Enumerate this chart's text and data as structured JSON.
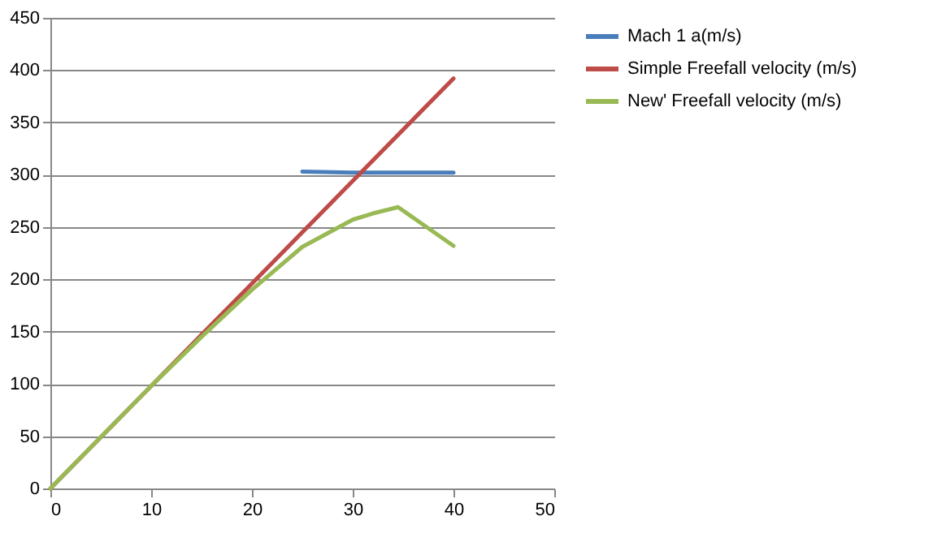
{
  "chart_data": {
    "type": "line",
    "xlim": [
      0,
      50
    ],
    "xticks": [
      0,
      10,
      20,
      30,
      40,
      50
    ],
    "ylim": [
      0,
      450
    ],
    "yticks": [
      0,
      50,
      100,
      150,
      200,
      250,
      300,
      350,
      400,
      450
    ],
    "grid": "y",
    "legend": "right",
    "marker": "none",
    "line_style": "solid",
    "series": [
      {
        "name": "Mach 1   a(m/s)",
        "color": "#4a7ebb",
        "x": [
          25,
          30,
          35,
          40
        ],
        "values": [
          303,
          302,
          302,
          302
        ]
      },
      {
        "name": "Simple Freefall velocity (m/s)",
        "color": "#be4b48",
        "x": [
          0,
          10,
          20,
          30,
          40
        ],
        "values": [
          0,
          98,
          196,
          294,
          392
        ]
      },
      {
        "name": "New' Freefall velocity (m/s)",
        "color": "#98b954",
        "x": [
          0,
          5,
          10,
          15,
          20,
          25,
          30,
          32,
          34.5,
          40
        ],
        "values": [
          0,
          49,
          98,
          145,
          190,
          231,
          257,
          263,
          269,
          232
        ]
      }
    ]
  }
}
